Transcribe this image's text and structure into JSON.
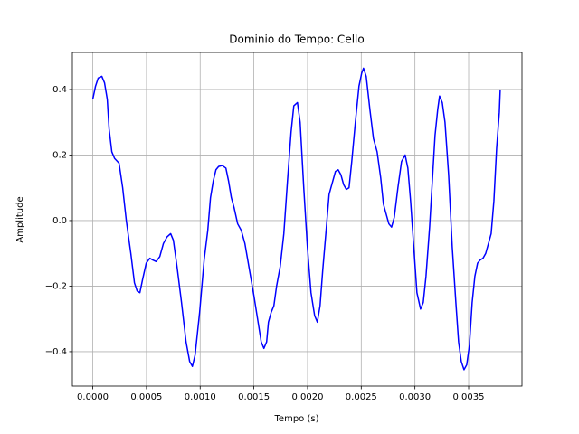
{
  "chart_data": {
    "type": "line",
    "title": "Dominio do Tempo: Cello",
    "x_label": "Tempo (s)",
    "y_label": "Amplitude",
    "color": "#0000ff",
    "grid": true,
    "xlim": [
      -0.00019,
      0.003997
    ],
    "ylim": [
      -0.505,
      0.513
    ],
    "xticks": [
      {
        "value": 0,
        "label": "0.0000"
      },
      {
        "value": 0.0005,
        "label": "0.0005"
      },
      {
        "value": 0.001,
        "label": "0.0010"
      },
      {
        "value": 0.0015,
        "label": "0.0015"
      },
      {
        "value": 0.002,
        "label": "0.0020"
      },
      {
        "value": 0.0025,
        "label": "0.0025"
      },
      {
        "value": 0.003,
        "label": "0.0030"
      },
      {
        "value": 0.0035,
        "label": "0.0035"
      }
    ],
    "yticks": [
      {
        "value": -0.4,
        "label": "−0.4"
      },
      {
        "value": -0.2,
        "label": "−0.2"
      },
      {
        "value": 0,
        "label": "0.0"
      },
      0.2,
      0.4
    ],
    "x": [
      0,
      2.53e-05,
      5.06e-05,
      8.43e-05,
      0.0001096,
      0.0001349,
      0.0001518,
      0.0001771,
      0.0002024,
      0.0002445,
      0.0002783,
      0.000312,
      0.0003541,
      0.0003879,
      0.0004132,
      0.0004385,
      0.0004637,
      0.0004975,
      0.0005312,
      0.0005565,
      0.0005902,
      0.000624,
      0.0006577,
      0.0006914,
      0.0007252,
      0.0007504,
      0.0007842,
      0.0008263,
      0.0008685,
      0.0009022,
      0.0009275,
      0.0009528,
      0.000995,
      0.0010371,
      0.0010709,
      0.0010961,
      0.0011214,
      0.0011467,
      0.001172,
      0.0012058,
      0.0012395,
      0.0012648,
      0.0012901,
      0.0013154,
      0.0013491,
      0.0013828,
      0.0014166,
      0.0014587,
      0.0015009,
      0.0015346,
      0.0015683,
      0.0015936,
      0.0016189,
      0.0016358,
      0.0016611,
      0.0016863,
      0.0017116,
      0.0017454,
      0.0017791,
      0.0018129,
      0.0018466,
      0.0018719,
      0.0019056,
      0.0019309,
      0.0019646,
      0.0019983,
      0.0020321,
      0.0020658,
      0.0020911,
      0.0021164,
      0.0021417,
      0.0021754,
      0.0022007,
      0.0022344,
      0.0022597,
      0.002285,
      0.0023103,
      0.0023356,
      0.0023609,
      0.0023862,
      0.0024115,
      0.0024452,
      0.0024789,
      0.0025042,
      0.0025211,
      0.0025464,
      0.0025801,
      0.0026138,
      0.0026476,
      0.0026813,
      0.0027066,
      0.0027319,
      0.0027572,
      0.0027824,
      0.0028077,
      0.0028415,
      0.0028752,
      0.0029089,
      0.0029342,
      0.0029595,
      0.0029933,
      0.0030186,
      0.0030523,
      0.0030776,
      0.0031029,
      0.0031366,
      0.0031619,
      0.0031872,
      0.0032125,
      0.0032294,
      0.0032547,
      0.00328,
      0.0033137,
      0.0033474,
      0.0033812,
      0.0034065,
      0.0034318,
      0.003457,
      0.0034823,
      0.0035076,
      0.0035329,
      0.0035582,
      0.0035835,
      0.0036088,
      0.0036341,
      0.0036594,
      0.0036847,
      0.00371,
      0.0037353,
      0.0037606,
      0.0037859,
      0.0037943
    ],
    "values": [
      0.37,
      0.41,
      0.435,
      0.44,
      0.42,
      0.37,
      0.28,
      0.21,
      0.19,
      0.175,
      0.1,
      0.0,
      -0.1,
      -0.19,
      -0.215,
      -0.22,
      -0.18,
      -0.13,
      -0.115,
      -0.12,
      -0.125,
      -0.11,
      -0.07,
      -0.05,
      -0.04,
      -0.06,
      -0.14,
      -0.25,
      -0.37,
      -0.43,
      -0.445,
      -0.41,
      -0.28,
      -0.12,
      -0.03,
      0.07,
      0.12,
      0.155,
      0.165,
      0.168,
      0.16,
      0.12,
      0.07,
      0.04,
      -0.01,
      -0.03,
      -0.07,
      -0.15,
      -0.23,
      -0.3,
      -0.37,
      -0.39,
      -0.37,
      -0.31,
      -0.28,
      -0.26,
      -0.2,
      -0.14,
      -0.04,
      0.12,
      0.27,
      0.35,
      0.36,
      0.3,
      0.1,
      -0.08,
      -0.22,
      -0.29,
      -0.31,
      -0.26,
      -0.15,
      -0.02,
      0.08,
      0.12,
      0.15,
      0.155,
      0.14,
      0.11,
      0.095,
      0.1,
      0.18,
      0.3,
      0.41,
      0.45,
      0.465,
      0.44,
      0.34,
      0.25,
      0.21,
      0.13,
      0.05,
      0.02,
      -0.01,
      -0.02,
      0.01,
      0.1,
      0.18,
      0.2,
      0.16,
      0.06,
      -0.1,
      -0.22,
      -0.27,
      -0.25,
      -0.17,
      -0.02,
      0.12,
      0.26,
      0.34,
      0.38,
      0.36,
      0.3,
      0.14,
      -0.08,
      -0.25,
      -0.37,
      -0.43,
      -0.455,
      -0.44,
      -0.38,
      -0.25,
      -0.17,
      -0.13,
      -0.12,
      -0.115,
      -0.1,
      -0.07,
      -0.04,
      0.06,
      0.22,
      0.33,
      0.4
    ]
  }
}
